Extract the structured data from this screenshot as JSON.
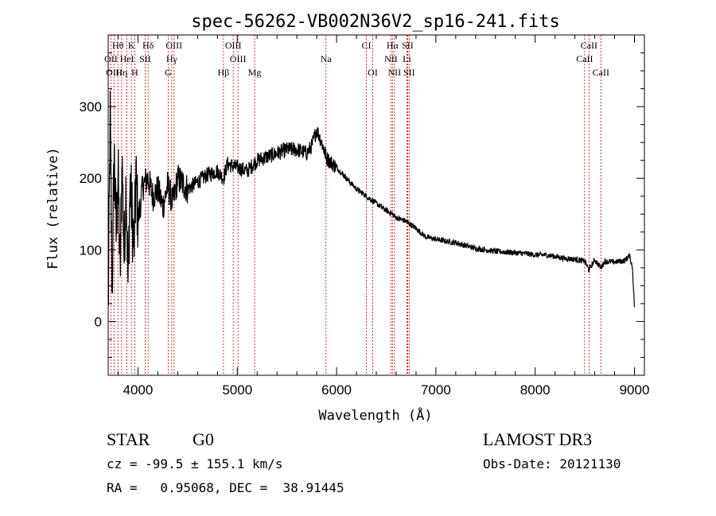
{
  "chart_data": {
    "type": "line",
    "title": "spec-56262-VB002N36V2_sp16-241.fits",
    "xlabel": "Wavelength (Å)",
    "ylabel": "Flux (relative)",
    "xlim": [
      3700,
      9100
    ],
    "ylim": [
      -75,
      400
    ],
    "xticks": [
      4000,
      5000,
      6000,
      7000,
      8000,
      9000
    ],
    "xtick_labels": [
      "4000",
      "5000",
      "6000",
      "7000",
      "8000",
      "9000"
    ],
    "yticks": [
      0,
      100,
      200,
      300
    ],
    "ytick_labels": [
      "0",
      "100",
      "200",
      "300"
    ],
    "grid": false,
    "legend": "none",
    "series": [
      {
        "name": "flux",
        "x": [
          3700,
          3720,
          3740,
          3760,
          3780,
          3800,
          3820,
          3840,
          3860,
          3880,
          3900,
          3920,
          3940,
          3960,
          3980,
          4000,
          4050,
          4100,
          4150,
          4200,
          4250,
          4300,
          4350,
          4400,
          4500,
          4600,
          4700,
          4800,
          4861,
          4900,
          5000,
          5100,
          5200,
          5300,
          5400,
          5500,
          5600,
          5700,
          5750,
          5800,
          5850,
          5900,
          6000,
          6100,
          6200,
          6300,
          6400,
          6500,
          6563,
          6600,
          6700,
          6800,
          6900,
          7000,
          7100,
          7200,
          7300,
          7400,
          7500,
          7600,
          7700,
          7800,
          7900,
          8000,
          8100,
          8200,
          8300,
          8400,
          8500,
          8542,
          8600,
          8662,
          8700,
          8800,
          8900,
          8950,
          8980,
          9000
        ],
        "y": [
          5,
          280,
          40,
          240,
          120,
          210,
          60,
          230,
          90,
          200,
          50,
          195,
          150,
          100,
          200,
          140,
          190,
          200,
          175,
          185,
          160,
          190,
          165,
          200,
          185,
          195,
          205,
          210,
          200,
          220,
          215,
          210,
          225,
          230,
          235,
          240,
          240,
          235,
          245,
          268,
          250,
          228,
          215,
          200,
          185,
          175,
          165,
          155,
          150,
          145,
          140,
          130,
          118,
          115,
          112,
          110,
          106,
          102,
          100,
          98,
          97,
          96,
          95,
          93,
          93,
          91,
          88,
          87,
          84,
          72,
          86,
          75,
          84,
          83,
          85,
          92,
          75,
          20
        ]
      }
    ],
    "lines": [
      {
        "label": "Hθ",
        "x": 3798,
        "row": 1
      },
      {
        "label": "K",
        "x": 3934,
        "row": 1
      },
      {
        "label": "Hδ",
        "x": 4102,
        "row": 1
      },
      {
        "label": "OIII",
        "x": 4363,
        "row": 1
      },
      {
        "label": "OIII",
        "x": 4959,
        "row": 1
      },
      {
        "label": "CI",
        "x": 6300,
        "row": 1
      },
      {
        "label": "Hα",
        "x": 6563,
        "row": 1
      },
      {
        "label": "SII",
        "x": 6716,
        "row": 1
      },
      {
        "label": "CaII",
        "x": 8542,
        "row": 1
      },
      {
        "label": "OII",
        "x": 3727,
        "row": 2
      },
      {
        "label": "HeI",
        "x": 3889,
        "row": 2
      },
      {
        "label": "SII",
        "x": 4072,
        "row": 2
      },
      {
        "label": "Hγ",
        "x": 4340,
        "row": 2
      },
      {
        "label": "OIII",
        "x": 5007,
        "row": 2
      },
      {
        "label": "Na",
        "x": 5893,
        "row": 2
      },
      {
        "label": "NII",
        "x": 6548,
        "row": 2
      },
      {
        "label": "Li",
        "x": 6708,
        "row": 2
      },
      {
        "label": "CaII",
        "x": 8498,
        "row": 2
      },
      {
        "label": "OIII",
        "x": 3760,
        "row": 3
      },
      {
        "label": "Hη",
        "x": 3835,
        "row": 3
      },
      {
        "label": "H",
        "x": 3968,
        "row": 3
      },
      {
        "label": "G",
        "x": 4304,
        "row": 3
      },
      {
        "label": "Hβ",
        "x": 4861,
        "row": 3
      },
      {
        "label": "Mg",
        "x": 5175,
        "row": 3
      },
      {
        "label": "OI",
        "x": 6364,
        "row": 3
      },
      {
        "label": "NII",
        "x": 6583,
        "row": 3
      },
      {
        "label": "SII",
        "x": 6731,
        "row": 3
      },
      {
        "label": "CaII",
        "x": 8662,
        "row": 3
      }
    ],
    "colors": {
      "spectrum": "#000000",
      "line_marker": "#d00000"
    }
  },
  "info": {
    "object_class": "STAR",
    "subclass": "G0",
    "survey": "LAMOST DR3",
    "redshift": "cz = -99.5 ± 155.1 km/s",
    "obs_date": "Obs-Date: 20121130",
    "coords": "RA =   0.95068, DEC =  38.91445"
  }
}
